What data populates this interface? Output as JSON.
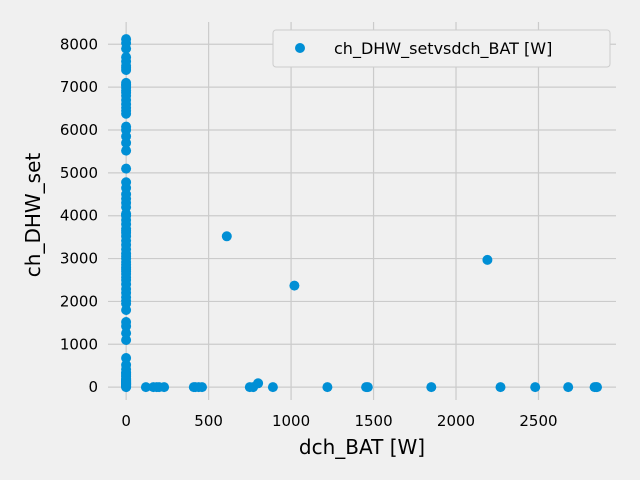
{
  "chart_data": {
    "type": "scatter",
    "title": "",
    "xlabel": "dch_BAT [W]",
    "ylabel": "ch_DHW_set",
    "xlim": [
      -110,
      2970
    ],
    "ylim": [
      -300,
      8520
    ],
    "xticks": [
      0,
      500,
      1000,
      1500,
      2000,
      2500
    ],
    "yticks": [
      0,
      1000,
      2000,
      3000,
      4000,
      5000,
      6000,
      7000,
      8000
    ],
    "grid": true,
    "legend_position": "top-right",
    "colors": {
      "marker": "#008fd5",
      "background": "#f0f0f0",
      "grid": "#cbcbcb"
    },
    "series": [
      {
        "name": "ch_DHW_setvsdch_BAT [W]",
        "x": [
          0,
          0,
          0,
          0,
          0,
          0,
          0,
          0,
          0,
          0,
          0,
          0,
          0,
          0,
          0,
          0,
          0,
          0,
          0,
          0,
          0,
          0,
          0,
          0,
          0,
          0,
          0,
          0,
          0,
          0,
          0,
          0,
          0,
          0,
          0,
          0,
          0,
          0,
          0,
          0,
          0,
          0,
          0,
          0,
          0,
          0,
          0,
          0,
          0,
          0,
          0,
          0,
          0,
          0,
          0,
          0,
          0,
          0,
          0,
          0,
          0,
          0,
          0,
          0,
          0,
          0,
          0,
          0,
          0,
          0,
          0,
          0,
          0,
          0,
          0,
          0,
          0,
          0,
          0,
          0,
          0,
          0,
          0,
          0,
          0,
          0,
          0,
          0,
          0,
          0,
          120,
          165,
          185,
          200,
          230,
          410,
          420,
          440,
          460,
          610,
          750,
          770,
          800,
          890,
          1020,
          1220,
          1455,
          1465,
          1850,
          2190,
          2270,
          2480,
          2680,
          2840,
          2850,
          2855
        ],
        "y": [
          0,
          10,
          20,
          40,
          60,
          80,
          100,
          130,
          160,
          200,
          260,
          330,
          420,
          520,
          680,
          1100,
          1260,
          1420,
          1520,
          1800,
          1950,
          2020,
          2100,
          2200,
          2290,
          2400,
          2500,
          2560,
          2640,
          2700,
          2750,
          2800,
          2860,
          2920,
          3000,
          3050,
          3120,
          3220,
          3320,
          3420,
          3520,
          3600,
          3650,
          3700,
          3800,
          3900,
          4000,
          4020,
          4050,
          4200,
          4300,
          4400,
          4500,
          4650,
          4780,
          5100,
          5520,
          5700,
          5850,
          6000,
          6080,
          6380,
          6450,
          6520,
          6600,
          6700,
          6800,
          6870,
          6920,
          6980,
          7030,
          7060,
          7100,
          7400,
          7450,
          7500,
          7600,
          7700,
          7900,
          8030,
          8120,
          50,
          70,
          90,
          110,
          150,
          180,
          250,
          300,
          350,
          0,
          0,
          0,
          0,
          0,
          0,
          0,
          0,
          0,
          3520,
          0,
          0,
          90,
          0,
          2370,
          0,
          0,
          0,
          0,
          2970,
          0,
          0,
          0,
          0,
          0,
          0
        ]
      }
    ]
  }
}
